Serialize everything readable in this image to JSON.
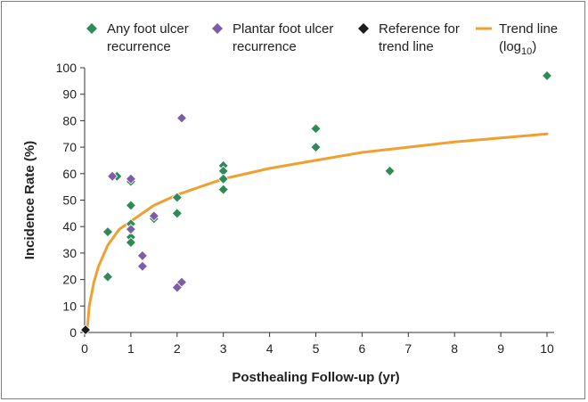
{
  "chart_data": {
    "type": "scatter",
    "xlabel": "Posthealing Follow-up (yr)",
    "ylabel": "Incidence Rate (%)",
    "xlim": [
      0,
      10
    ],
    "ylim": [
      0,
      100
    ],
    "xticks": [
      "0",
      "1",
      "2",
      "3",
      "4",
      "5",
      "6",
      "7",
      "8",
      "9",
      "10"
    ],
    "yticks": [
      "0",
      "10",
      "20",
      "30",
      "40",
      "50",
      "60",
      "70",
      "80",
      "90",
      "100"
    ],
    "grid": false,
    "legend_position": "top",
    "legend": [
      {
        "line1": "Any foot ulcer",
        "line2": "recurrence",
        "kind": "diamond",
        "color": "#2e8b57"
      },
      {
        "line1": "Plantar foot ulcer",
        "line2": "recurrence",
        "kind": "diamond",
        "color": "#7b5ea7"
      },
      {
        "line1": "Reference for",
        "line2": "trend line",
        "kind": "diamond",
        "color": "#1a1a1a"
      },
      {
        "line1": "Trend line",
        "line2": "(log",
        "line2_sub": "10",
        "line2_end": ")",
        "kind": "line",
        "color": "#f0a030"
      }
    ],
    "series": [
      {
        "name": "Any foot ulcer recurrence",
        "color": "#2e8b57",
        "points": [
          [
            0.5,
            38
          ],
          [
            0.5,
            21
          ],
          [
            0.7,
            59
          ],
          [
            1,
            57
          ],
          [
            1,
            48
          ],
          [
            1,
            41
          ],
          [
            1,
            36
          ],
          [
            1,
            34
          ],
          [
            1.5,
            43
          ],
          [
            2,
            51
          ],
          [
            2,
            45
          ],
          [
            3,
            63
          ],
          [
            3,
            61
          ],
          [
            3,
            58
          ],
          [
            3,
            54
          ],
          [
            5,
            77
          ],
          [
            5,
            70
          ],
          [
            6.6,
            61
          ],
          [
            10,
            97
          ]
        ]
      },
      {
        "name": "Plantar foot ulcer recurrence",
        "color": "#7b5ea7",
        "points": [
          [
            0.6,
            59
          ],
          [
            1,
            58
          ],
          [
            1,
            39
          ],
          [
            1.25,
            29
          ],
          [
            1.25,
            25
          ],
          [
            1.5,
            44
          ],
          [
            2,
            17
          ],
          [
            2.1,
            19
          ],
          [
            2.1,
            81
          ]
        ]
      },
      {
        "name": "Reference for trend line",
        "color": "#1a1a1a",
        "points": [
          [
            0.02,
            1
          ]
        ]
      }
    ],
    "trend_line": {
      "name": "Trend line (log10)",
      "color": "#f0a030",
      "x": [
        0.05,
        0.1,
        0.2,
        0.3,
        0.5,
        0.75,
        1,
        1.5,
        2,
        2.5,
        3,
        4,
        5,
        6,
        7,
        8,
        9,
        10
      ],
      "y": [
        0,
        10,
        19,
        25,
        33,
        39,
        42,
        48,
        52,
        55,
        58,
        62,
        65,
        68,
        70,
        72,
        73.5,
        75
      ]
    }
  }
}
